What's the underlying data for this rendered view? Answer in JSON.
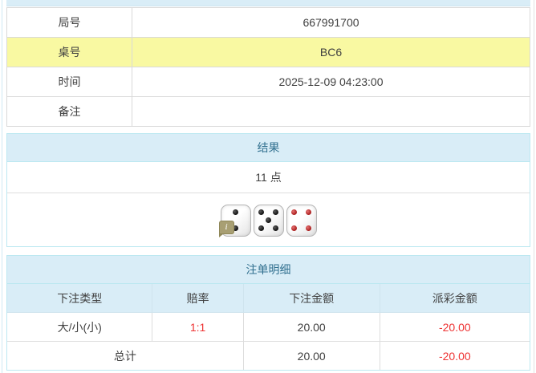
{
  "info_table": {
    "rows": [
      {
        "label": "局号",
        "value": "667991700"
      },
      {
        "label": "桌号",
        "value": "BC6"
      },
      {
        "label": "时间",
        "value": "2025-12-09 04:23:00"
      },
      {
        "label": "备注",
        "value": ""
      }
    ]
  },
  "result_panel": {
    "title": "结果",
    "points": "11 点",
    "dice": [
      {
        "value": 2,
        "color": "black"
      },
      {
        "value": 5,
        "color": "black"
      },
      {
        "value": 4,
        "color": "red"
      }
    ],
    "info_badge": "i"
  },
  "bets_panel": {
    "title": "注单明细",
    "columns": [
      "下注类型",
      "赔率",
      "下注金额",
      "派彩金额"
    ],
    "rows": [
      {
        "bet_type": "大/小(小)",
        "odds": "1:1",
        "bet_amount": "20.00",
        "payout_amount": "-20.00"
      }
    ],
    "total": {
      "label": "总计",
      "bet_amount": "20.00",
      "payout_amount": "-20.00"
    }
  },
  "colors": {
    "panel_header_bg": "#d9edf7",
    "panel_border": "#bce8f1",
    "panel_header_text": "#31708f",
    "highlight_row_bg": "#f9f9a2",
    "negative_amount": "#ee3333",
    "body_text": "#404040"
  }
}
